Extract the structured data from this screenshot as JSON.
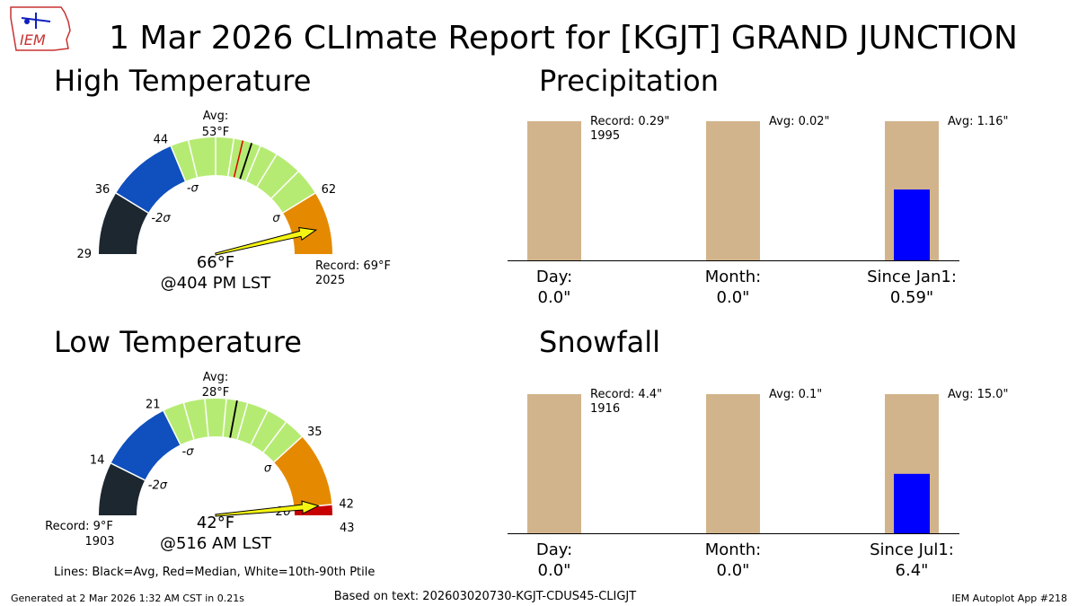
{
  "header": {
    "title": "1 Mar 2026 CLImate Report for [KGJT] GRAND JUNCTION",
    "logo_text": "IEM"
  },
  "footer": {
    "generated": "Generated at 2 Mar 2026 1:32 AM CST in 0.21s",
    "based_on": "Based on text: 202603020730-KGJT-CDUS45-CLIGJT",
    "app": "IEM Autoplot App #218",
    "lines_legend": "Lines: Black=Avg, Red=Median, White=10th-90th Ptile"
  },
  "colors": {
    "below_2sigma": "#1c2730",
    "minus_2sigma": "#0f4fbe",
    "within_sigma": "#b6eb73",
    "plus_sigma": "#e58a00",
    "record": "#c60000",
    "needle": "#f5f514",
    "bar_bg": "#d2b48c",
    "bar_obs": "#0000ff"
  },
  "chart_data": [
    {
      "type": "gauge",
      "title": "High Temperature",
      "scale_min": 29,
      "scale_max": 69,
      "bands": [
        {
          "from": 29,
          "to": 36,
          "color": "below_2sigma"
        },
        {
          "from": 36,
          "to": 44,
          "color": "minus_2sigma"
        },
        {
          "from": 44,
          "to": 62,
          "color": "within_sigma"
        },
        {
          "from": 62,
          "to": 69,
          "color": "plus_sigma"
        }
      ],
      "ticks": [
        {
          "value": 29,
          "label": "29"
        },
        {
          "value": 36,
          "label": "36"
        },
        {
          "value": 44,
          "label": "44"
        },
        {
          "value": 62,
          "label": "62"
        }
      ],
      "sigma_labels": [
        {
          "value": 36,
          "label": "-2σ"
        },
        {
          "value": 44,
          "label": "-σ"
        },
        {
          "value": 62,
          "label": "σ"
        }
      ],
      "percentile_lines": [
        46,
        49,
        51,
        54,
        56,
        59
      ],
      "avg": 53,
      "median": 52,
      "avg_label": "Avg:",
      "avg_value_label": "53°F",
      "observed": 66,
      "observed_label": "66°F",
      "time_label": "@404 PM LST",
      "record_label": "Record: 69°F",
      "record_year": "2025"
    },
    {
      "type": "gauge",
      "title": "Low Temperature",
      "scale_min": 9,
      "scale_max": 43,
      "bands": [
        {
          "from": 9,
          "to": 14,
          "color": "below_2sigma"
        },
        {
          "from": 14,
          "to": 21,
          "color": "minus_2sigma"
        },
        {
          "from": 21,
          "to": 35,
          "color": "within_sigma"
        },
        {
          "from": 35,
          "to": 42,
          "color": "plus_sigma"
        },
        {
          "from": 42,
          "to": 43,
          "color": "record"
        }
      ],
      "ticks": [
        {
          "value": 14,
          "label": "14"
        },
        {
          "value": 21,
          "label": "21"
        },
        {
          "value": 35,
          "label": "35"
        },
        {
          "value": 42,
          "label": "42"
        },
        {
          "value": 43,
          "label": "43"
        }
      ],
      "sigma_labels": [
        {
          "value": 14,
          "label": "-2σ"
        },
        {
          "value": 21,
          "label": "-σ"
        },
        {
          "value": 35,
          "label": "σ"
        },
        {
          "value": 42,
          "label": "2σ"
        }
      ],
      "percentile_lines": [
        23,
        25,
        27,
        29,
        31,
        33
      ],
      "avg": 28,
      "median": 28,
      "avg_label": "Avg:",
      "avg_value_label": "28°F",
      "observed": 42,
      "observed_label": "42°F",
      "time_label": "@516 AM LST",
      "record_label": "Record: 9°F",
      "record_year": "1903"
    },
    {
      "type": "bar",
      "title": "Precipitation",
      "categories": [
        "Day:",
        "Month:",
        "Since Jan1:"
      ],
      "observed_labels": [
        "0.0\"",
        "0.0\"",
        "0.59\""
      ],
      "reference_labels": [
        "Record: 0.29\"",
        "Avg: 0.02\"",
        "Avg: 1.16\""
      ],
      "reference_sublabels": [
        "1995",
        "",
        ""
      ],
      "observed_fraction_of_reference": [
        0,
        0,
        0.509
      ]
    },
    {
      "type": "bar",
      "title": "Snowfall",
      "categories": [
        "Day:",
        "Month:",
        "Since Jul1:"
      ],
      "observed_labels": [
        "0.0\"",
        "0.0\"",
        "6.4\""
      ],
      "reference_labels": [
        "Record: 4.4\"",
        "Avg: 0.1\"",
        "Avg: 15.0\""
      ],
      "reference_sublabels": [
        "1916",
        "",
        ""
      ],
      "observed_fraction_of_reference": [
        0,
        0,
        0.427
      ]
    }
  ]
}
